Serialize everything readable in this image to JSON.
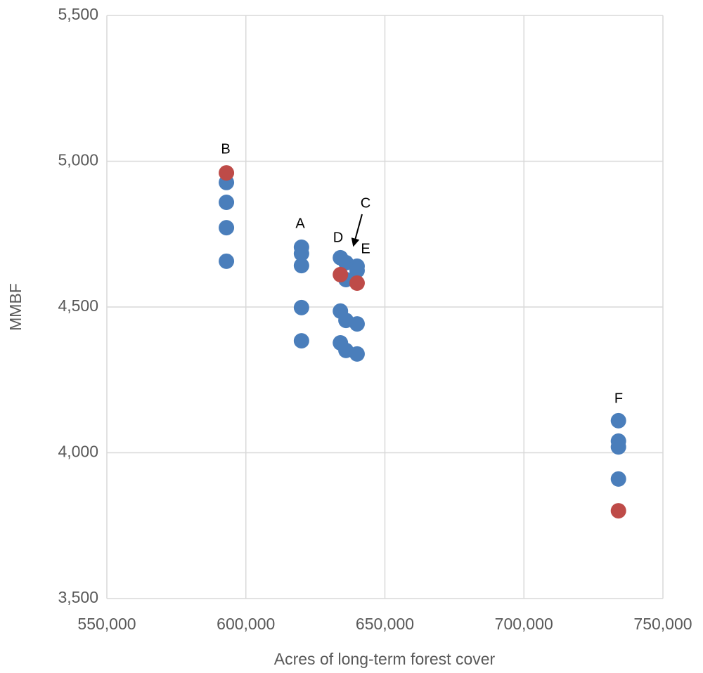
{
  "chart_data": {
    "type": "scatter",
    "x_label": "Acres of long-term forest cover",
    "y_label": "MMBF",
    "series": [
      {
        "color": "#4a7ebb",
        "x": [
          593000,
          593000,
          593000,
          593000,
          620000,
          620000,
          620000,
          620000,
          620000,
          634000,
          634000,
          634000,
          636000,
          636000,
          636000,
          636000,
          640000,
          640000,
          640000,
          640000,
          734000,
          734000,
          734000,
          734000
        ],
        "values": [
          4927,
          4859,
          4772,
          4657,
          4705,
          4683,
          4642,
          4498,
          4384,
          4669,
          4486,
          4377,
          4652,
          4594,
          4454,
          4351,
          4640,
          4625,
          4442,
          4339,
          4110,
          4040,
          4020,
          3910
        ]
      },
      {
        "color": "#be4b48",
        "x": [
          593000,
          634000,
          640000,
          734000
        ],
        "values": [
          4960,
          4611,
          4582,
          3801
        ]
      }
    ],
    "annotations": [
      "B",
      "A",
      "D",
      "C",
      "E",
      "F"
    ],
    "xlim": [
      550000,
      750000
    ],
    "xticks": [
      {
        "value": 550000,
        "label": "550,000"
      },
      {
        "value": 600000,
        "label": "600,000"
      },
      {
        "value": 650000,
        "label": "650,000"
      },
      {
        "value": 700000,
        "label": "700,000"
      },
      {
        "value": 750000,
        "label": "750,000"
      }
    ],
    "ylim": [
      3500,
      5500
    ],
    "yticks": [
      {
        "value": 3500,
        "label": "3,500"
      },
      {
        "value": 4000,
        "label": "4,000"
      },
      {
        "value": 4500,
        "label": "4,500"
      },
      {
        "value": 5000,
        "label": "5,000"
      },
      {
        "value": 5500,
        "label": "5,500"
      }
    ],
    "grid": true
  }
}
